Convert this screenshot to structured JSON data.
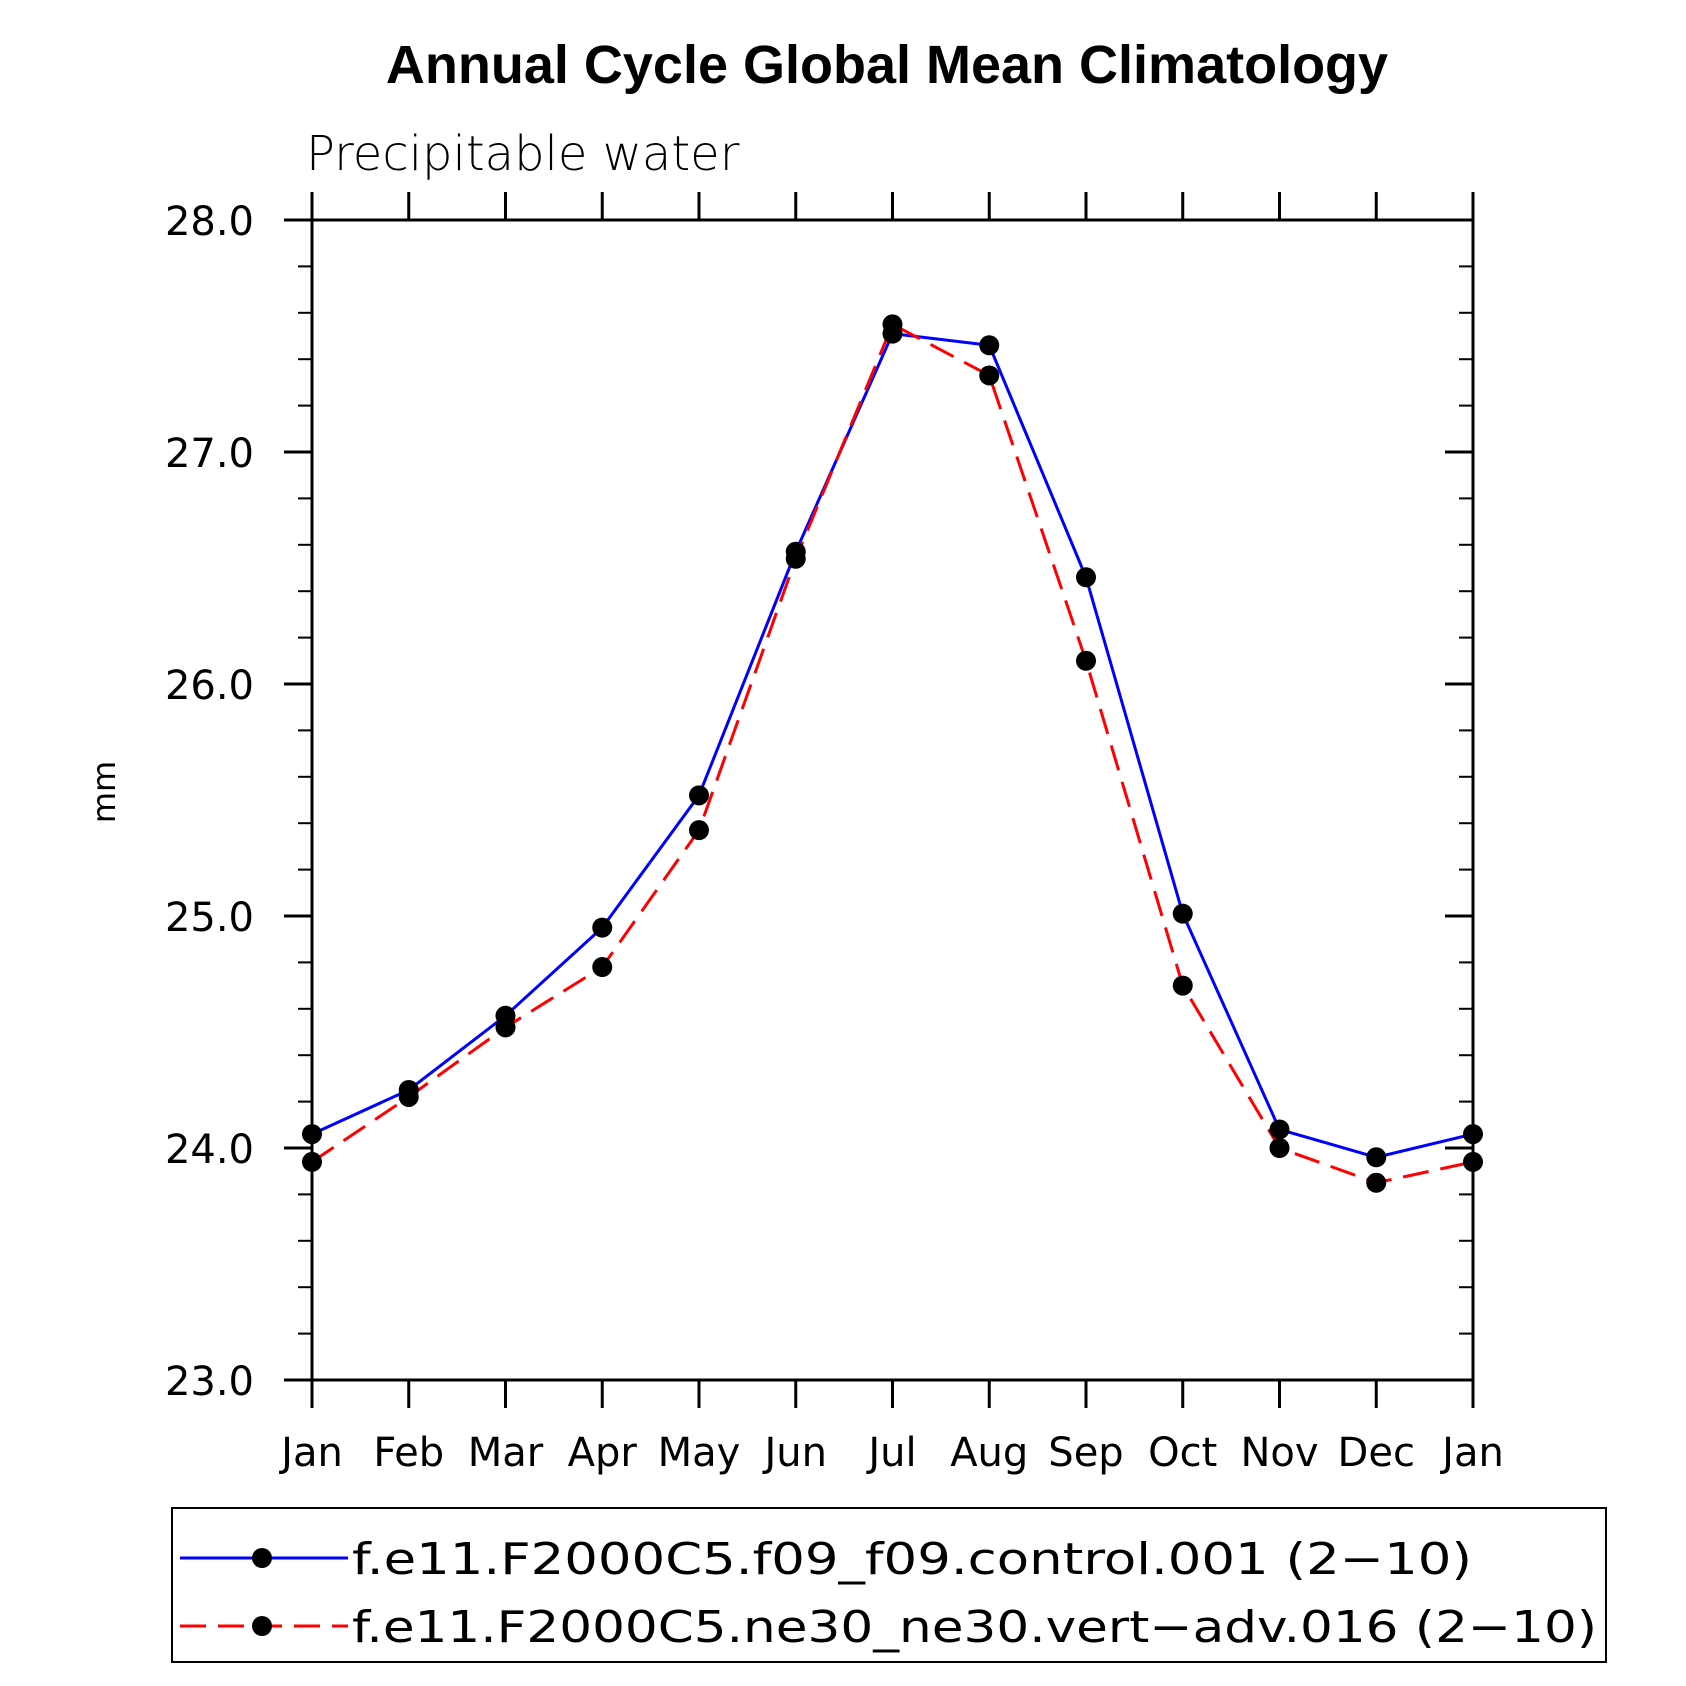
{
  "chart_data": {
    "type": "line",
    "title": "Annual Cycle Global Mean Climatology",
    "subtitle": "Precipitable water",
    "xlabel": "",
    "ylabel": "mm",
    "categories": [
      "Jan",
      "Feb",
      "Mar",
      "Apr",
      "May",
      "Jun",
      "Jul",
      "Aug",
      "Sep",
      "Oct",
      "Nov",
      "Dec",
      "Jan"
    ],
    "ylim": [
      23.0,
      28.0
    ],
    "yticks": [
      "23.0",
      "24.0",
      "25.0",
      "26.0",
      "27.0",
      "28.0"
    ],
    "ytick_values": [
      23.0,
      24.0,
      25.0,
      26.0,
      27.0,
      28.0
    ],
    "grid": false,
    "legend_position": "bottom",
    "series": [
      {
        "name": "f.e11.F2000C5.f09_f09.control.001 (2−10)",
        "color": "#0000ff",
        "line_style": "solid",
        "marker": "filled-circle",
        "values": [
          24.06,
          24.25,
          24.57,
          24.95,
          25.52,
          26.57,
          27.51,
          27.46,
          26.46,
          25.01,
          24.08,
          23.96,
          24.06
        ]
      },
      {
        "name": "f.e11.F2000C5.ne30_ne30.vert−adv.016 (2−10)",
        "color": "#ff0000",
        "line_style": "dashed",
        "marker": "filled-circle",
        "values": [
          23.94,
          24.22,
          24.52,
          24.78,
          25.37,
          26.54,
          27.55,
          27.33,
          26.1,
          24.7,
          24.0,
          23.85,
          23.94
        ]
      }
    ]
  }
}
